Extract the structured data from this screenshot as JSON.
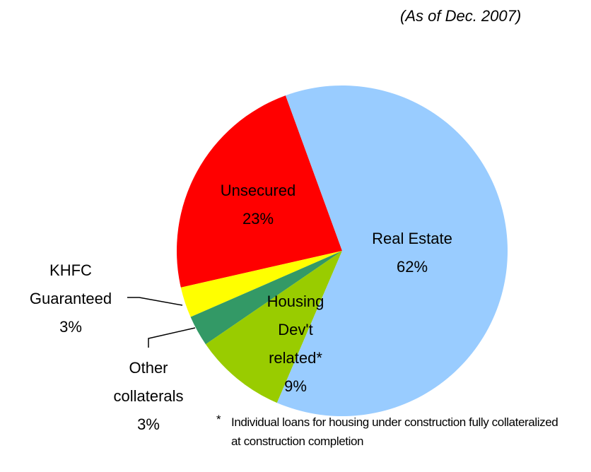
{
  "chart_data": {
    "type": "pie",
    "subtitle": "(As of Dec. 2007)",
    "categories": [
      "Real Estate",
      "Housing Dev't related*",
      "Other collaterals",
      "KHFC Guaranteed",
      "Unsecured"
    ],
    "values": [
      62,
      9,
      3,
      3,
      23
    ],
    "value_labels": [
      "62%",
      "9%",
      "3%",
      "3%",
      "23%"
    ],
    "colors": [
      "#99ccff",
      "#99cc00",
      "#339966",
      "#ffff00",
      "#ff0000"
    ],
    "note_marker": "*",
    "note": "Individual loans for housing under construction  fully collateralized at construction completion"
  }
}
